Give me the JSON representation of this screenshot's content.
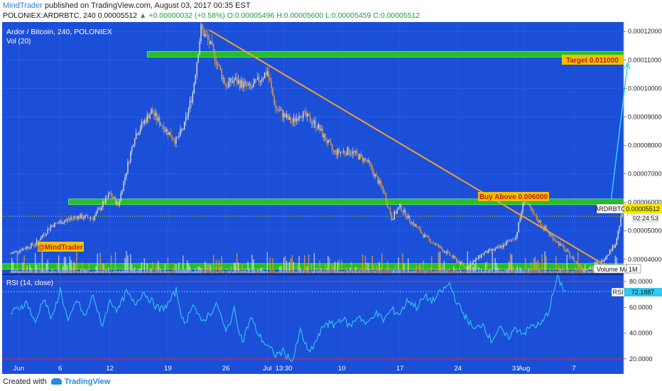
{
  "header": {
    "author": "MindTrader",
    "published_text": " published on TradingView.com, August 03, 2017 00:35 EST",
    "symbol_line": "POLONIEX:ARDRBTC, 240  0.00005512",
    "change_text": "+0.00000032 (+0.58%)",
    "ohlc": [
      {
        "k": "O:",
        "v": "0.00005496"
      },
      {
        "k": "H:",
        "v": "0.00005600"
      },
      {
        "k": "L:",
        "v": "0.00005459"
      },
      {
        "k": "C:",
        "v": "0.00005512"
      }
    ]
  },
  "chart": {
    "title": "Ardor / Bitcoin, 240, POLONIEX",
    "vol_label": "Vol (20)",
    "ticker_tag": "ARDRBTC",
    "price_tag": "0.00005512",
    "countdown": "02:24:53",
    "target_label": "Target 0.011000",
    "buy_label": "Buy Above 0.006000",
    "watermark": "@MindTrader",
    "volume_ma_label": "Volume MA",
    "interval_label": "1M",
    "rsi_label": "RSI (14, close)",
    "rsi_tag_label": "RSI",
    "rsi_value": "72.1887",
    "colors": {
      "panel_bg": "#1b4fd8",
      "candle_up": "#e4e4e4",
      "candle_down": "#f0a030",
      "trendline": "#f0a030",
      "zone": "#22c022",
      "rsi_line": "#33c8f0",
      "rsi_bands": "#e03040",
      "target_arrow": "#2ed4f0"
    },
    "icons": [
      "tradingview-logo-icon"
    ]
  },
  "chart_data": {
    "type": "candlestick",
    "main_axis": {
      "ticks": [
        "0.00012000",
        "0.00011000",
        "0.00010000",
        "0.00009000",
        "0.00008000",
        "0.00007000",
        "0.00006000",
        "0.00005000",
        "0.00004000"
      ],
      "tick_values": [
        0.00012,
        0.00011,
        0.0001,
        9e-05,
        8e-05,
        7e-05,
        6e-05,
        5e-05,
        4e-05
      ]
    },
    "rsi_axis": {
      "ticks": [
        "80.0000",
        "60.0000",
        "40.0000",
        "20.0000"
      ],
      "tick_values": [
        80,
        60,
        40,
        20
      ]
    },
    "x_labels": [
      "Jun",
      "6",
      "12",
      "19",
      "26",
      "Jul",
      "13:30",
      "10",
      "17",
      "24",
      "31",
      "Aug",
      "7"
    ],
    "x_label_days": [
      1,
      6,
      12,
      19,
      26,
      31,
      33,
      40,
      47,
      54,
      61,
      62,
      68
    ],
    "x_range": [
      -1,
      74
    ],
    "y_range": [
      3.47e-05,
      0.0001233
    ],
    "rsi_range": [
      17.7,
      85.5
    ],
    "price_path": [
      [
        0,
        4.2e-05
      ],
      [
        3,
        4.55e-05
      ],
      [
        5,
        5.2e-05
      ],
      [
        8,
        5.5e-05
      ],
      [
        10,
        5.45e-05
      ],
      [
        12,
        6.3e-05
      ],
      [
        13,
        5.9e-05
      ],
      [
        15,
        8.35e-05
      ],
      [
        17,
        9.2e-05
      ],
      [
        18,
        8.8e-05
      ],
      [
        20,
        8.15e-05
      ],
      [
        21,
        8.7e-05
      ],
      [
        22,
        9.85e-05
      ],
      [
        23,
        0.000121
      ],
      [
        24,
        0.000116
      ],
      [
        26,
        0.000101
      ],
      [
        27,
        0.000103
      ],
      [
        29,
        0.0001
      ],
      [
        31,
        0.000106
      ],
      [
        32,
        9.3e-05
      ],
      [
        34,
        8.8e-05
      ],
      [
        35,
        9.15e-05
      ],
      [
        37,
        8.7e-05
      ],
      [
        39,
        7.75e-05
      ],
      [
        41,
        7.8e-05
      ],
      [
        43,
        7.45e-05
      ],
      [
        45,
        6.4e-05
      ],
      [
        46,
        5.45e-05
      ],
      [
        47,
        5.85e-05
      ],
      [
        48,
        5.45e-05
      ],
      [
        50,
        4.8e-05
      ],
      [
        53,
        4.15e-05
      ],
      [
        55,
        3.7e-05
      ],
      [
        57,
        4.2e-05
      ],
      [
        59,
        4.4e-05
      ],
      [
        61,
        4.8e-05
      ],
      [
        62,
        6.1e-05
      ],
      [
        63,
        5.6e-05
      ],
      [
        65,
        4.9e-05
      ],
      [
        67,
        4.3e-05
      ],
      [
        69,
        3.65e-05
      ],
      [
        71,
        3.8e-05
      ],
      [
        73,
        4.55e-05
      ],
      [
        74,
        5.85e-05
      ],
      [
        75,
        5.51e-05
      ]
    ],
    "rsi_path": [
      [
        0,
        55
      ],
      [
        2,
        64
      ],
      [
        3,
        47
      ],
      [
        4,
        68
      ],
      [
        5,
        50
      ],
      [
        6,
        74
      ],
      [
        7,
        48
      ],
      [
        8,
        66
      ],
      [
        9,
        52
      ],
      [
        10,
        70
      ],
      [
        11,
        45
      ],
      [
        12,
        65
      ],
      [
        13,
        58
      ],
      [
        14,
        72
      ],
      [
        15,
        62
      ],
      [
        16,
        72
      ],
      [
        17,
        65
      ],
      [
        18,
        58
      ],
      [
        19,
        62
      ],
      [
        20,
        73
      ],
      [
        21,
        45
      ],
      [
        22,
        64
      ],
      [
        23,
        48
      ],
      [
        24,
        55
      ],
      [
        25,
        62
      ],
      [
        26,
        40
      ],
      [
        27,
        58
      ],
      [
        28,
        33
      ],
      [
        29,
        52
      ],
      [
        30,
        38
      ],
      [
        31,
        30
      ],
      [
        32,
        23
      ],
      [
        33,
        26
      ],
      [
        34,
        17
      ],
      [
        35,
        42
      ],
      [
        36,
        24
      ],
      [
        37,
        35
      ],
      [
        38,
        48
      ],
      [
        39,
        46
      ],
      [
        40,
        52
      ],
      [
        41,
        45
      ],
      [
        42,
        54
      ],
      [
        43,
        46
      ],
      [
        44,
        56
      ],
      [
        45,
        50
      ],
      [
        46,
        58
      ],
      [
        47,
        55
      ],
      [
        48,
        66
      ],
      [
        49,
        60
      ],
      [
        50,
        68
      ],
      [
        51,
        65
      ],
      [
        52,
        72
      ],
      [
        53,
        78
      ],
      [
        54,
        62
      ],
      [
        55,
        52
      ],
      [
        56,
        42
      ],
      [
        57,
        48
      ],
      [
        58,
        34
      ],
      [
        59,
        44
      ],
      [
        60,
        36
      ],
      [
        61,
        44
      ],
      [
        62,
        40
      ],
      [
        63,
        46
      ],
      [
        64,
        46
      ],
      [
        65,
        58
      ],
      [
        66,
        83
      ],
      [
        67,
        72
      ]
    ],
    "zones": [
      {
        "name": "target-zone",
        "level": 0.000112
      },
      {
        "name": "buy-zone",
        "level": 6.02e-05
      },
      {
        "name": "support-zone",
        "level": 3.75e-05
      }
    ],
    "trendline": {
      "from": [
        24,
        0.0001205
      ],
      "to": [
        72,
        3.75e-05
      ]
    },
    "target_arrow": {
      "from": [
        72.5,
        6.12e-05
      ],
      "to": [
        74.5,
        0.000109
      ]
    },
    "current_price_value": 5.512e-05,
    "rsi_bands": [
      80,
      20
    ],
    "rsi_current": 72.1887
  }
}
